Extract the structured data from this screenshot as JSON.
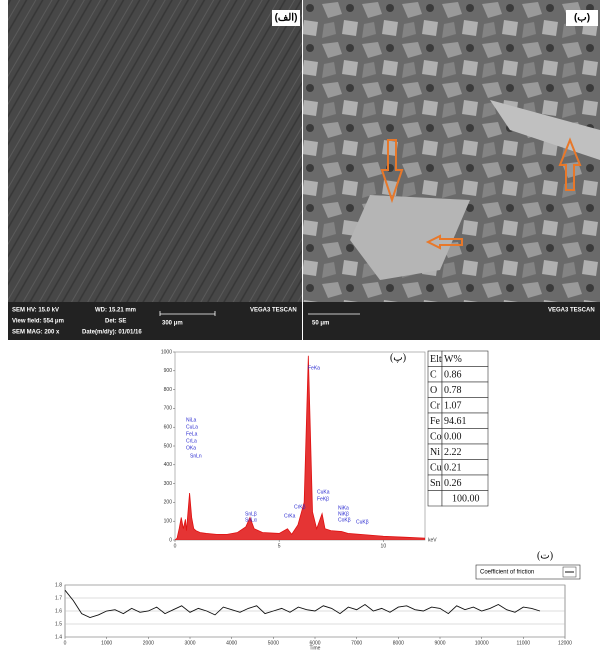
{
  "images": [
    {
      "label": "(الف)",
      "info": [
        "SEM HV: 15.0 kV",
        "WD: 15.21 mm",
        "View field: 554 μm",
        "Det: SE",
        "SEM MAG: 200 x",
        "Date(m/d/y): 01/01/16"
      ],
      "scale": "300 μm",
      "brand": "VEGA3 TESCAN"
    },
    {
      "label": "(ب)",
      "scale": "50 μm",
      "brand": "VEGA3 TESCAN"
    }
  ],
  "chart_data": [
    {
      "type": "area",
      "label": "(پ)",
      "color": "#e01010",
      "x_unit": "keV",
      "x": [
        0,
        0.1,
        0.2,
        0.3,
        0.4,
        0.5,
        0.55,
        0.7,
        0.8,
        0.9,
        1.0,
        1.2,
        1.5,
        2.0,
        2.5,
        3.0,
        3.4,
        3.6,
        3.8,
        4.2,
        5.0,
        5.4,
        5.6,
        5.9,
        6.2,
        6.4,
        6.6,
        6.8,
        7.06,
        7.2,
        7.48,
        8.0,
        8.3,
        8.9,
        10,
        11,
        12
      ],
      "values": [
        0,
        10,
        60,
        120,
        60,
        110,
        50,
        250,
        120,
        60,
        50,
        40,
        35,
        30,
        30,
        40,
        70,
        120,
        60,
        40,
        35,
        60,
        30,
        80,
        200,
        980,
        150,
        60,
        140,
        60,
        50,
        45,
        35,
        30,
        20,
        15,
        10
      ],
      "xlim": [
        0,
        12
      ],
      "ylim": [
        0,
        1000
      ],
      "xticks": [
        0,
        5,
        10
      ],
      "yticks": [
        0,
        100,
        200,
        300,
        400,
        500,
        600,
        700,
        800,
        900,
        1000
      ],
      "annotations": [
        "FeKa",
        "NiLa",
        "CuLa",
        "FeLa",
        "CrLa",
        "OKa",
        "SnLn",
        "SnLβ",
        "SnLα",
        "CrKa",
        "CrKβ",
        "CuKa",
        "FeKβ",
        "NiKa",
        "NiKβ",
        "CuKβ",
        "CoKβ"
      ]
    },
    {
      "type": "line",
      "label": "(ت)",
      "xlabel": "Time",
      "x": [
        0,
        200,
        400,
        600,
        800,
        1000,
        1200,
        1400,
        1600,
        1800,
        2000,
        2200,
        2400,
        2600,
        2800,
        3000,
        3200,
        3400,
        3600,
        3800,
        4000,
        4200,
        4400,
        4600,
        4800,
        5000,
        5200,
        5400,
        5600,
        5800,
        6000,
        6200,
        6400,
        6600,
        6800,
        7000,
        7200,
        7400,
        7600,
        7800,
        8000,
        8200,
        8400,
        8600,
        8800,
        9000,
        9200,
        9400,
        9600,
        9800,
        10000,
        10200,
        10400,
        10600,
        10800,
        11000,
        11200,
        11400
      ],
      "series": [
        {
          "name": "Coefficient of friction",
          "color": "#111111",
          "values": [
            1.76,
            1.68,
            1.58,
            1.55,
            1.57,
            1.6,
            1.61,
            1.58,
            1.62,
            1.59,
            1.6,
            1.63,
            1.58,
            1.61,
            1.64,
            1.59,
            1.62,
            1.6,
            1.57,
            1.63,
            1.61,
            1.59,
            1.62,
            1.64,
            1.58,
            1.6,
            1.62,
            1.59,
            1.63,
            1.61,
            1.6,
            1.64,
            1.62,
            1.58,
            1.63,
            1.61,
            1.65,
            1.6,
            1.62,
            1.59,
            1.63,
            1.64,
            1.61,
            1.6,
            1.63,
            1.62,
            1.58,
            1.64,
            1.61,
            1.63,
            1.6,
            1.62,
            1.65,
            1.61,
            1.59,
            1.63,
            1.62,
            1.6
          ]
        }
      ],
      "xlim": [
        0,
        12000
      ],
      "ylim": [
        1.4,
        1.8
      ],
      "xticks": [
        0,
        1000,
        2000,
        3000,
        4000,
        5000,
        6000,
        7000,
        8000,
        9000,
        10000,
        11000,
        12000
      ],
      "yticks": [
        1.4,
        1.5,
        1.6,
        1.7,
        1.8
      ],
      "grid": true
    }
  ],
  "table": {
    "header": [
      "Elt",
      "W%"
    ],
    "rows": [
      [
        "C",
        "0.86"
      ],
      [
        "O",
        "0.78"
      ],
      [
        "Cr",
        "1.07"
      ],
      [
        "Fe",
        "94.61"
      ],
      [
        "Co",
        "0.00"
      ],
      [
        "Ni",
        "2.22"
      ],
      [
        "Cu",
        "0.21"
      ],
      [
        "Sn",
        "0.26"
      ]
    ],
    "total": "100.00"
  }
}
